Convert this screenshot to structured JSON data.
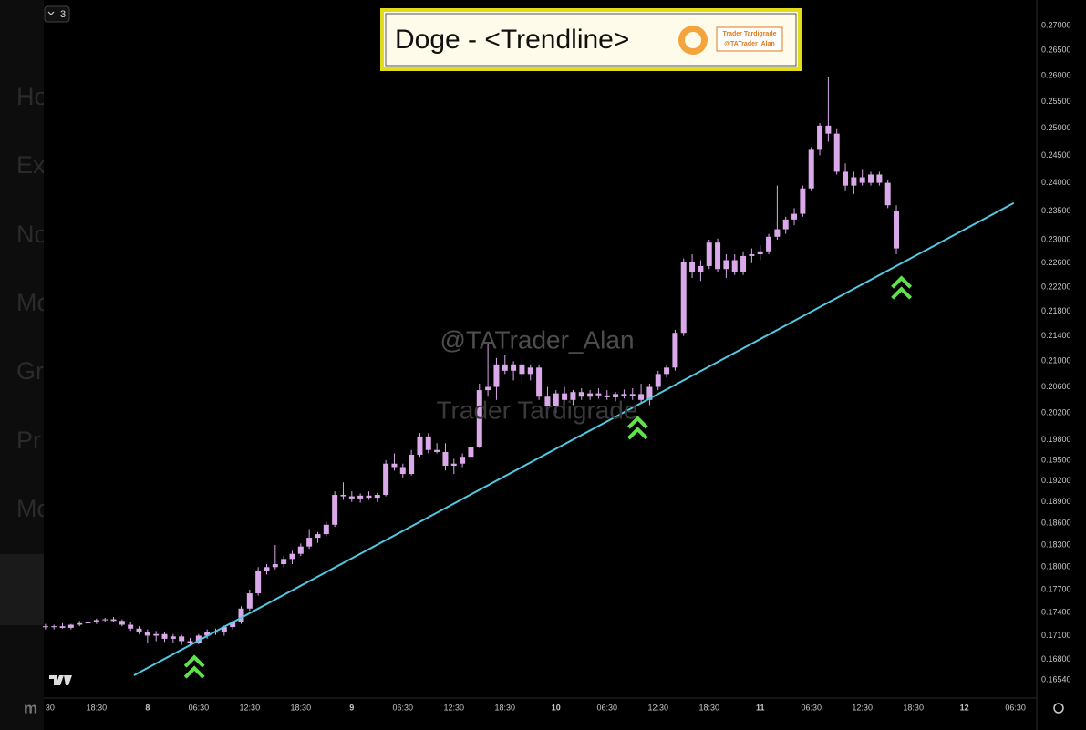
{
  "chart_data": {
    "type": "candlestick",
    "title": "Doge - <Trendline>",
    "logo_lines": [
      "Trader Tardigrade",
      "@TATrader_Alan"
    ],
    "watermarks": [
      "@TATrader_Alan",
      "Trader Tardigrade"
    ],
    "badge": "3",
    "sidebar_fragments": [
      "Ho",
      "Ex",
      "No",
      "Mo",
      "Gr",
      "Pr",
      "Mo",
      "m"
    ],
    "color": "#d9a9ea",
    "trendline_color": "#52c8e3",
    "signal_color": "#5fe24a",
    "log_scale": true,
    "xlim": [
      -0.2,
      116.5
    ],
    "ylim": [
      0.1633,
      0.2752
    ],
    "xticks": [
      {
        "value": 0,
        "label": "30"
      },
      {
        "value": 6,
        "label": "18:30"
      },
      {
        "value": 12,
        "label": "8"
      },
      {
        "value": 18,
        "label": "06:30"
      },
      {
        "value": 24,
        "label": "12:30"
      },
      {
        "value": 30,
        "label": "18:30"
      },
      {
        "value": 36,
        "label": "9"
      },
      {
        "value": 42,
        "label": "06:30"
      },
      {
        "value": 48,
        "label": "12:30"
      },
      {
        "value": 54,
        "label": "18:30"
      },
      {
        "value": 60,
        "label": "10"
      },
      {
        "value": 66,
        "label": "06:30"
      },
      {
        "value": 72,
        "label": "12:30"
      },
      {
        "value": 78,
        "label": "18:30"
      },
      {
        "value": 84,
        "label": "11"
      },
      {
        "value": 90,
        "label": "06:30"
      },
      {
        "value": 96,
        "label": "12:30"
      },
      {
        "value": 102,
        "label": "18:30"
      },
      {
        "value": 108,
        "label": "12"
      },
      {
        "value": 114,
        "label": "06:30"
      }
    ],
    "yticks": [
      {
        "value": 0.27,
        "label": "0.27000"
      },
      {
        "value": 0.265,
        "label": "0.26500"
      },
      {
        "value": 0.26,
        "label": "0.26000"
      },
      {
        "value": 0.255,
        "label": "0.25500"
      },
      {
        "value": 0.25,
        "label": "0.25000"
      },
      {
        "value": 0.245,
        "label": "0.24500"
      },
      {
        "value": 0.24,
        "label": "0.24000"
      },
      {
        "value": 0.235,
        "label": "0.23500"
      },
      {
        "value": 0.23,
        "label": "0.23000"
      },
      {
        "value": 0.226,
        "label": "0.22600"
      },
      {
        "value": 0.222,
        "label": "0.22200"
      },
      {
        "value": 0.218,
        "label": "0.21800"
      },
      {
        "value": 0.214,
        "label": "0.21400"
      },
      {
        "value": 0.21,
        "label": "0.21000"
      },
      {
        "value": 0.206,
        "label": "0.20600"
      },
      {
        "value": 0.202,
        "label": "0.20200"
      },
      {
        "value": 0.198,
        "label": "0.19800"
      },
      {
        "value": 0.195,
        "label": "0.19500"
      },
      {
        "value": 0.192,
        "label": "0.19200"
      },
      {
        "value": 0.189,
        "label": "0.18900"
      },
      {
        "value": 0.186,
        "label": "0.18600"
      },
      {
        "value": 0.183,
        "label": "0.18300"
      },
      {
        "value": 0.18,
        "label": "0.18000"
      },
      {
        "value": 0.177,
        "label": "0.17700"
      },
      {
        "value": 0.174,
        "label": "0.17400"
      },
      {
        "value": 0.171,
        "label": "0.17100"
      },
      {
        "value": 0.168,
        "label": "0.16800"
      },
      {
        "value": 0.1654,
        "label": "0.16540"
      }
    ],
    "ohlc": [
      [
        0.1722,
        0.1725,
        0.1718,
        0.1721
      ],
      [
        0.1721,
        0.1724,
        0.1718,
        0.1722
      ],
      [
        0.1722,
        0.1726,
        0.1719,
        0.172
      ],
      [
        0.172,
        0.1725,
        0.1718,
        0.1724
      ],
      [
        0.1724,
        0.1729,
        0.1722,
        0.1726
      ],
      [
        0.1726,
        0.173,
        0.1723,
        0.1727
      ],
      [
        0.1727,
        0.1732,
        0.1725,
        0.173
      ],
      [
        0.173,
        0.1733,
        0.1727,
        0.1731
      ],
      [
        0.1731,
        0.1734,
        0.1727,
        0.1729
      ],
      [
        0.1729,
        0.1731,
        0.1722,
        0.1724
      ],
      [
        0.1724,
        0.1727,
        0.1716,
        0.1719
      ],
      [
        0.1719,
        0.1722,
        0.1712,
        0.1715
      ],
      [
        0.1715,
        0.1718,
        0.17,
        0.171
      ],
      [
        0.171,
        0.1716,
        0.1703,
        0.1712
      ],
      [
        0.1712,
        0.1714,
        0.1702,
        0.1706
      ],
      [
        0.1706,
        0.1712,
        0.1701,
        0.1709
      ],
      [
        0.1709,
        0.1711,
        0.1698,
        0.1703
      ],
      [
        0.1703,
        0.1707,
        0.1697,
        0.1701
      ],
      [
        0.1701,
        0.1712,
        0.1699,
        0.171
      ],
      [
        0.171,
        0.1718,
        0.1706,
        0.1715
      ],
      [
        0.1715,
        0.1719,
        0.1711,
        0.1714
      ],
      [
        0.1714,
        0.1723,
        0.171,
        0.1721
      ],
      [
        0.1721,
        0.173,
        0.1718,
        0.1727
      ],
      [
        0.1727,
        0.1748,
        0.1725,
        0.1745
      ],
      [
        0.1745,
        0.177,
        0.1742,
        0.1765
      ],
      [
        0.1765,
        0.18,
        0.1762,
        0.1795
      ],
      [
        0.1795,
        0.1804,
        0.179,
        0.18
      ],
      [
        0.18,
        0.183,
        0.1797,
        0.1804
      ],
      [
        0.1804,
        0.1815,
        0.18,
        0.1811
      ],
      [
        0.1811,
        0.1822,
        0.1804,
        0.1818
      ],
      [
        0.1818,
        0.1832,
        0.1815,
        0.1828
      ],
      [
        0.1828,
        0.1852,
        0.1825,
        0.184
      ],
      [
        0.184,
        0.1848,
        0.1833,
        0.1845
      ],
      [
        0.1845,
        0.1862,
        0.1842,
        0.1858
      ],
      [
        0.1858,
        0.1905,
        0.1855,
        0.19
      ],
      [
        0.19,
        0.1918,
        0.1893,
        0.1898
      ],
      [
        0.1898,
        0.1905,
        0.189,
        0.1895
      ],
      [
        0.1895,
        0.1902,
        0.1889,
        0.1899
      ],
      [
        0.1899,
        0.1905,
        0.1893,
        0.1896
      ],
      [
        0.1896,
        0.1903,
        0.189,
        0.19
      ],
      [
        0.19,
        0.195,
        0.1898,
        0.1945
      ],
      [
        0.1945,
        0.196,
        0.1935,
        0.194
      ],
      [
        0.194,
        0.1945,
        0.1925,
        0.193
      ],
      [
        0.193,
        0.1965,
        0.1928,
        0.1958
      ],
      [
        0.1958,
        0.199,
        0.1955,
        0.1985
      ],
      [
        0.1985,
        0.199,
        0.196,
        0.1965
      ],
      [
        0.1965,
        0.1975,
        0.196,
        0.1962
      ],
      [
        0.1962,
        0.1975,
        0.1935,
        0.1942
      ],
      [
        0.1942,
        0.1952,
        0.193,
        0.1945
      ],
      [
        0.1945,
        0.196,
        0.194,
        0.1955
      ],
      [
        0.1955,
        0.1975,
        0.195,
        0.197
      ],
      [
        0.197,
        0.2065,
        0.1968,
        0.2055
      ],
      [
        0.2055,
        0.213,
        0.2045,
        0.206
      ],
      [
        0.206,
        0.2105,
        0.204,
        0.2095
      ],
      [
        0.2095,
        0.211,
        0.208,
        0.2085
      ],
      [
        0.2085,
        0.21,
        0.207,
        0.2095
      ],
      [
        0.2095,
        0.2105,
        0.2065,
        0.208
      ],
      [
        0.208,
        0.2095,
        0.207,
        0.209
      ],
      [
        0.209,
        0.2095,
        0.204,
        0.2045
      ],
      [
        0.2045,
        0.206,
        0.2025,
        0.203
      ],
      [
        0.203,
        0.2055,
        0.202,
        0.205
      ],
      [
        0.205,
        0.206,
        0.2035,
        0.204
      ],
      [
        0.204,
        0.2055,
        0.2032,
        0.2052
      ],
      [
        0.2052,
        0.2058,
        0.204,
        0.2045
      ],
      [
        0.2045,
        0.2055,
        0.204,
        0.205
      ],
      [
        0.205,
        0.2058,
        0.2042,
        0.2047
      ],
      [
        0.2047,
        0.2055,
        0.204,
        0.2044
      ],
      [
        0.2044,
        0.2052,
        0.2038,
        0.2049
      ],
      [
        0.2049,
        0.2056,
        0.2042,
        0.2046
      ],
      [
        0.2046,
        0.2058,
        0.204,
        0.2049
      ],
      [
        0.2049,
        0.2065,
        0.2035,
        0.204
      ],
      [
        0.204,
        0.2065,
        0.2032,
        0.206
      ],
      [
        0.206,
        0.2085,
        0.2055,
        0.208
      ],
      [
        0.208,
        0.2095,
        0.2075,
        0.209
      ],
      [
        0.209,
        0.215,
        0.2085,
        0.2145
      ],
      [
        0.2145,
        0.2268,
        0.214,
        0.2262
      ],
      [
        0.2262,
        0.2275,
        0.2235,
        0.2245
      ],
      [
        0.2245,
        0.2265,
        0.223,
        0.2255
      ],
      [
        0.2255,
        0.23,
        0.225,
        0.2295
      ],
      [
        0.2295,
        0.2302,
        0.2245,
        0.225
      ],
      [
        0.225,
        0.2275,
        0.2235,
        0.2265
      ],
      [
        0.2265,
        0.2275,
        0.224,
        0.2245
      ],
      [
        0.2245,
        0.228,
        0.224,
        0.2272
      ],
      [
        0.2272,
        0.2285,
        0.226,
        0.2275
      ],
      [
        0.2275,
        0.229,
        0.2265,
        0.228
      ],
      [
        0.228,
        0.231,
        0.2275,
        0.2305
      ],
      [
        0.2305,
        0.2395,
        0.23,
        0.2318
      ],
      [
        0.2318,
        0.234,
        0.231,
        0.2335
      ],
      [
        0.2335,
        0.2355,
        0.2325,
        0.2345
      ],
      [
        0.2345,
        0.2395,
        0.234,
        0.239
      ],
      [
        0.239,
        0.2465,
        0.2385,
        0.246
      ],
      [
        0.246,
        0.251,
        0.245,
        0.2505
      ],
      [
        0.2505,
        0.2598,
        0.2475,
        0.249
      ],
      [
        0.249,
        0.25,
        0.2415,
        0.242
      ],
      [
        0.242,
        0.2435,
        0.2385,
        0.2395
      ],
      [
        0.2395,
        0.242,
        0.238,
        0.241
      ],
      [
        0.241,
        0.2425,
        0.2395,
        0.24
      ],
      [
        0.24,
        0.242,
        0.2395,
        0.2415
      ],
      [
        0.2415,
        0.242,
        0.2395,
        0.24
      ],
      [
        0.24,
        0.2405,
        0.2355,
        0.236
      ],
      [
        0.235,
        0.236,
        0.2275,
        0.2285
      ]
    ],
    "trendline": {
      "x": [
        10.4,
        113.8
      ],
      "y": [
        0.166,
        0.2364
      ]
    },
    "signals": {
      "x": [
        17.5,
        69.6,
        100.6
      ],
      "y": [
        0.167,
        0.1997,
        0.2218
      ]
    }
  }
}
